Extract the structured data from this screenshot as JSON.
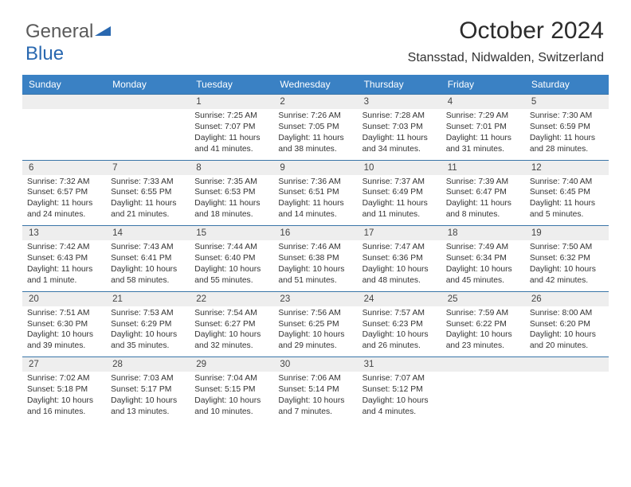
{
  "logo": {
    "text1": "General",
    "text2": "Blue",
    "color1": "#5a5a5a",
    "color2": "#2968b0",
    "triangle_fill": "#2968b0"
  },
  "header": {
    "title": "October 2024",
    "subtitle": "Stansstad, Nidwalden, Switzerland",
    "title_fontsize": 30,
    "subtitle_fontsize": 16
  },
  "colors": {
    "header_bar": "#3a81c4",
    "header_text": "#ffffff",
    "week_border": "#3a75a8",
    "daynum_bg": "#eeeeee",
    "body_text": "#333333",
    "page_bg": "#ffffff"
  },
  "day_headers": [
    "Sunday",
    "Monday",
    "Tuesday",
    "Wednesday",
    "Thursday",
    "Friday",
    "Saturday"
  ],
  "weeks": [
    [
      {
        "blank": true
      },
      {
        "blank": true
      },
      {
        "num": "1",
        "sunrise": "Sunrise: 7:25 AM",
        "sunset": "Sunset: 7:07 PM",
        "daylight": "Daylight: 11 hours and 41 minutes."
      },
      {
        "num": "2",
        "sunrise": "Sunrise: 7:26 AM",
        "sunset": "Sunset: 7:05 PM",
        "daylight": "Daylight: 11 hours and 38 minutes."
      },
      {
        "num": "3",
        "sunrise": "Sunrise: 7:28 AM",
        "sunset": "Sunset: 7:03 PM",
        "daylight": "Daylight: 11 hours and 34 minutes."
      },
      {
        "num": "4",
        "sunrise": "Sunrise: 7:29 AM",
        "sunset": "Sunset: 7:01 PM",
        "daylight": "Daylight: 11 hours and 31 minutes."
      },
      {
        "num": "5",
        "sunrise": "Sunrise: 7:30 AM",
        "sunset": "Sunset: 6:59 PM",
        "daylight": "Daylight: 11 hours and 28 minutes."
      }
    ],
    [
      {
        "num": "6",
        "sunrise": "Sunrise: 7:32 AM",
        "sunset": "Sunset: 6:57 PM",
        "daylight": "Daylight: 11 hours and 24 minutes."
      },
      {
        "num": "7",
        "sunrise": "Sunrise: 7:33 AM",
        "sunset": "Sunset: 6:55 PM",
        "daylight": "Daylight: 11 hours and 21 minutes."
      },
      {
        "num": "8",
        "sunrise": "Sunrise: 7:35 AM",
        "sunset": "Sunset: 6:53 PM",
        "daylight": "Daylight: 11 hours and 18 minutes."
      },
      {
        "num": "9",
        "sunrise": "Sunrise: 7:36 AM",
        "sunset": "Sunset: 6:51 PM",
        "daylight": "Daylight: 11 hours and 14 minutes."
      },
      {
        "num": "10",
        "sunrise": "Sunrise: 7:37 AM",
        "sunset": "Sunset: 6:49 PM",
        "daylight": "Daylight: 11 hours and 11 minutes."
      },
      {
        "num": "11",
        "sunrise": "Sunrise: 7:39 AM",
        "sunset": "Sunset: 6:47 PM",
        "daylight": "Daylight: 11 hours and 8 minutes."
      },
      {
        "num": "12",
        "sunrise": "Sunrise: 7:40 AM",
        "sunset": "Sunset: 6:45 PM",
        "daylight": "Daylight: 11 hours and 5 minutes."
      }
    ],
    [
      {
        "num": "13",
        "sunrise": "Sunrise: 7:42 AM",
        "sunset": "Sunset: 6:43 PM",
        "daylight": "Daylight: 11 hours and 1 minute."
      },
      {
        "num": "14",
        "sunrise": "Sunrise: 7:43 AM",
        "sunset": "Sunset: 6:41 PM",
        "daylight": "Daylight: 10 hours and 58 minutes."
      },
      {
        "num": "15",
        "sunrise": "Sunrise: 7:44 AM",
        "sunset": "Sunset: 6:40 PM",
        "daylight": "Daylight: 10 hours and 55 minutes."
      },
      {
        "num": "16",
        "sunrise": "Sunrise: 7:46 AM",
        "sunset": "Sunset: 6:38 PM",
        "daylight": "Daylight: 10 hours and 51 minutes."
      },
      {
        "num": "17",
        "sunrise": "Sunrise: 7:47 AM",
        "sunset": "Sunset: 6:36 PM",
        "daylight": "Daylight: 10 hours and 48 minutes."
      },
      {
        "num": "18",
        "sunrise": "Sunrise: 7:49 AM",
        "sunset": "Sunset: 6:34 PM",
        "daylight": "Daylight: 10 hours and 45 minutes."
      },
      {
        "num": "19",
        "sunrise": "Sunrise: 7:50 AM",
        "sunset": "Sunset: 6:32 PM",
        "daylight": "Daylight: 10 hours and 42 minutes."
      }
    ],
    [
      {
        "num": "20",
        "sunrise": "Sunrise: 7:51 AM",
        "sunset": "Sunset: 6:30 PM",
        "daylight": "Daylight: 10 hours and 39 minutes."
      },
      {
        "num": "21",
        "sunrise": "Sunrise: 7:53 AM",
        "sunset": "Sunset: 6:29 PM",
        "daylight": "Daylight: 10 hours and 35 minutes."
      },
      {
        "num": "22",
        "sunrise": "Sunrise: 7:54 AM",
        "sunset": "Sunset: 6:27 PM",
        "daylight": "Daylight: 10 hours and 32 minutes."
      },
      {
        "num": "23",
        "sunrise": "Sunrise: 7:56 AM",
        "sunset": "Sunset: 6:25 PM",
        "daylight": "Daylight: 10 hours and 29 minutes."
      },
      {
        "num": "24",
        "sunrise": "Sunrise: 7:57 AM",
        "sunset": "Sunset: 6:23 PM",
        "daylight": "Daylight: 10 hours and 26 minutes."
      },
      {
        "num": "25",
        "sunrise": "Sunrise: 7:59 AM",
        "sunset": "Sunset: 6:22 PM",
        "daylight": "Daylight: 10 hours and 23 minutes."
      },
      {
        "num": "26",
        "sunrise": "Sunrise: 8:00 AM",
        "sunset": "Sunset: 6:20 PM",
        "daylight": "Daylight: 10 hours and 20 minutes."
      }
    ],
    [
      {
        "num": "27",
        "sunrise": "Sunrise: 7:02 AM",
        "sunset": "Sunset: 5:18 PM",
        "daylight": "Daylight: 10 hours and 16 minutes."
      },
      {
        "num": "28",
        "sunrise": "Sunrise: 7:03 AM",
        "sunset": "Sunset: 5:17 PM",
        "daylight": "Daylight: 10 hours and 13 minutes."
      },
      {
        "num": "29",
        "sunrise": "Sunrise: 7:04 AM",
        "sunset": "Sunset: 5:15 PM",
        "daylight": "Daylight: 10 hours and 10 minutes."
      },
      {
        "num": "30",
        "sunrise": "Sunrise: 7:06 AM",
        "sunset": "Sunset: 5:14 PM",
        "daylight": "Daylight: 10 hours and 7 minutes."
      },
      {
        "num": "31",
        "sunrise": "Sunrise: 7:07 AM",
        "sunset": "Sunset: 5:12 PM",
        "daylight": "Daylight: 10 hours and 4 minutes."
      },
      {
        "blank": true
      },
      {
        "blank": true
      }
    ]
  ]
}
